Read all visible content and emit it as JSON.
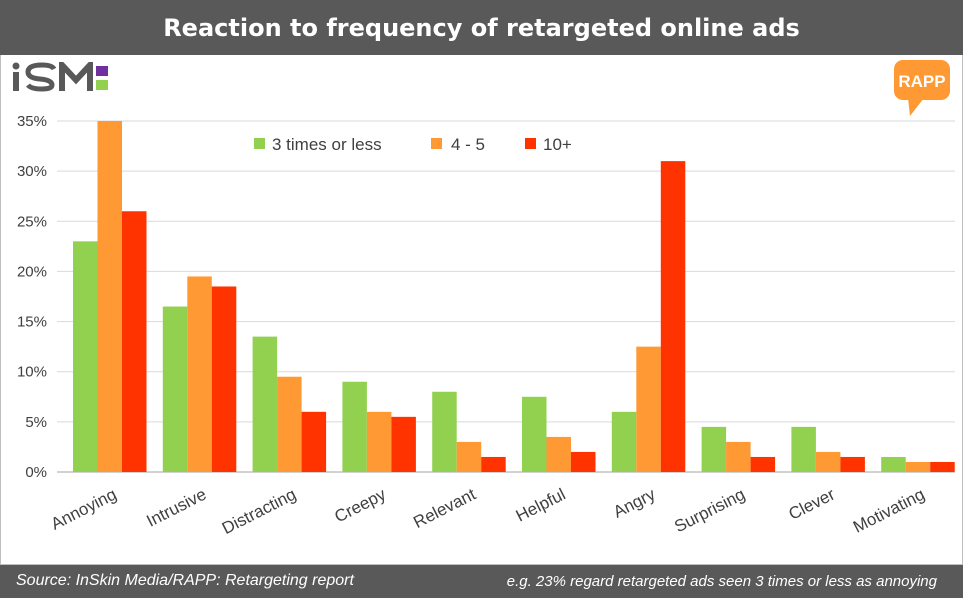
{
  "title": "Reaction to frequency of retargeted online ads",
  "footer": {
    "source": "Source: InSkin Media/RAPP: Retargeting report",
    "note": "e.g. 23% regard retargeted ads seen 3 times or less as annoying"
  },
  "logos": {
    "left": "iSM",
    "right": "RAPP"
  },
  "colors": {
    "series1": "#92d050",
    "series2": "#ff9933",
    "series3": "#ff3300",
    "bar_bg": "#595959"
  },
  "chart_data": {
    "type": "bar",
    "categories": [
      "Annoying",
      "Intrusive",
      "Distracting",
      "Creepy",
      "Relevant",
      "Helpful",
      "Angry",
      "Surprising",
      "Clever",
      "Motivating"
    ],
    "series": [
      {
        "name": "3 times or less",
        "values": [
          23,
          16.5,
          13.5,
          9,
          8,
          7.5,
          6,
          4.5,
          4.5,
          1.5
        ]
      },
      {
        "name": "4 - 5",
        "values": [
          35,
          19.5,
          9.5,
          6,
          3,
          3.5,
          12.5,
          3,
          2,
          1
        ]
      },
      {
        "name": "10+",
        "values": [
          26,
          18.5,
          6,
          5.5,
          1.5,
          2,
          31,
          1.5,
          1.5,
          1
        ]
      }
    ],
    "ylim": [
      0,
      35
    ],
    "yticks": [
      "0%",
      "5%",
      "10%",
      "15%",
      "20%",
      "25%",
      "30%",
      "35%"
    ],
    "grid": true,
    "legend_position": "top-left",
    "xlabel": "",
    "ylabel": ""
  }
}
